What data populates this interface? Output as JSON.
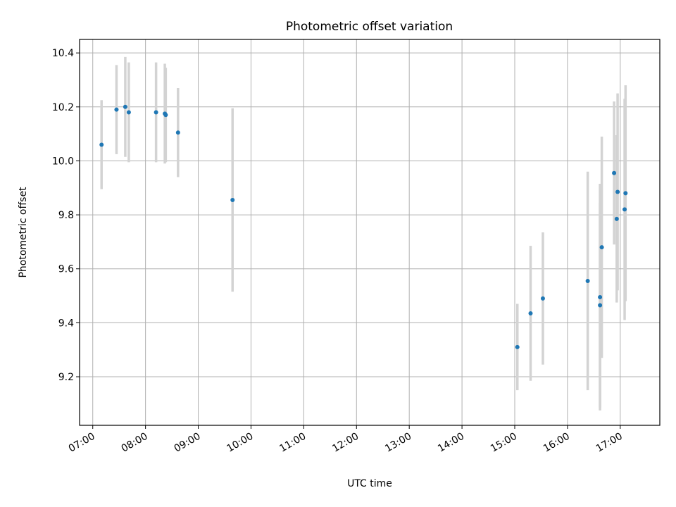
{
  "chart_data": {
    "type": "scatter",
    "title": "Photometric offset variation",
    "xlabel": "UTC time",
    "ylabel": "Photometric offset",
    "x_ticks": [
      "07:00",
      "08:00",
      "09:00",
      "10:00",
      "11:00",
      "12:00",
      "13:00",
      "14:00",
      "15:00",
      "16:00",
      "17:00"
    ],
    "y_ticks": [
      "9.2",
      "9.4",
      "9.6",
      "9.8",
      "10.0",
      "10.2",
      "10.4"
    ],
    "xlim": [
      "06:45",
      "17:45"
    ],
    "ylim": [
      9.02,
      10.45
    ],
    "grid": true,
    "marker_color": "#1f77b4",
    "errorbar_color": "#d3d3d3",
    "points": [
      {
        "t": "07:10",
        "y": 10.06,
        "err": 0.165
      },
      {
        "t": "07:27",
        "y": 10.19,
        "err": 0.165
      },
      {
        "t": "07:37",
        "y": 10.2,
        "err": 0.185
      },
      {
        "t": "07:41",
        "y": 10.18,
        "err": 0.185
      },
      {
        "t": "08:12",
        "y": 10.18,
        "err": 0.185
      },
      {
        "t": "08:22",
        "y": 10.175,
        "err": 0.185
      },
      {
        "t": "08:23",
        "y": 10.17,
        "err": 0.175
      },
      {
        "t": "08:37",
        "y": 10.105,
        "err": 0.165
      },
      {
        "t": "09:39",
        "y": 9.855,
        "err": 0.34
      },
      {
        "t": "15:03",
        "y": 9.31,
        "err": 0.16
      },
      {
        "t": "15:18",
        "y": 9.435,
        "err": 0.25
      },
      {
        "t": "15:32",
        "y": 9.49,
        "err": 0.245
      },
      {
        "t": "16:23",
        "y": 9.555,
        "err": 0.405
      },
      {
        "t": "16:37",
        "y": 9.495,
        "err": 0.42
      },
      {
        "t": "16:37",
        "y": 9.465,
        "err": 0.38
      },
      {
        "t": "16:39",
        "y": 9.68,
        "err": 0.41
      },
      {
        "t": "16:53",
        "y": 9.955,
        "err": 0.265
      },
      {
        "t": "16:56",
        "y": 9.785,
        "err": 0.31
      },
      {
        "t": "16:57",
        "y": 9.885,
        "err": 0.365
      },
      {
        "t": "17:05",
        "y": 9.82,
        "err": 0.41
      },
      {
        "t": "17:06",
        "y": 9.88,
        "err": 0.4
      }
    ]
  }
}
